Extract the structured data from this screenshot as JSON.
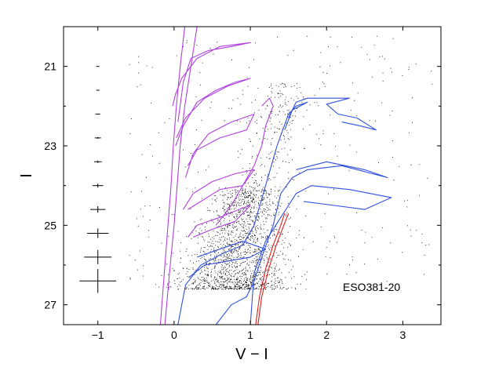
{
  "chart_data": {
    "type": "scatter",
    "xlabel": "V − I",
    "ylabel": "I",
    "xlim": [
      -1.45,
      3.5
    ],
    "ylim": [
      27.5,
      20.0
    ],
    "y_inverted": true,
    "grid": false,
    "x_ticks": [
      -1,
      0,
      1,
      2,
      3
    ],
    "x_tick_labels": [
      "−1",
      "0",
      "1",
      "2",
      "3"
    ],
    "y_ticks": [
      21,
      23,
      25,
      27
    ],
    "y_tick_labels": [
      "21",
      "23",
      "25",
      "27"
    ],
    "annotation": "ESO381-20",
    "scatter_color": "#000000",
    "error_bars": [
      {
        "x": -1,
        "y": 21.0,
        "xerr": 0.02,
        "yerr": 0.0
      },
      {
        "x": -1,
        "y": 21.6,
        "xerr": 0.02,
        "yerr": 0.0
      },
      {
        "x": -1,
        "y": 22.2,
        "xerr": 0.03,
        "yerr": 0.0
      },
      {
        "x": -1,
        "y": 22.8,
        "xerr": 0.04,
        "yerr": 0.02
      },
      {
        "x": -1,
        "y": 23.4,
        "xerr": 0.05,
        "yerr": 0.03
      },
      {
        "x": -1,
        "y": 24.0,
        "xerr": 0.07,
        "yerr": 0.05
      },
      {
        "x": -1,
        "y": 24.6,
        "xerr": 0.1,
        "yerr": 0.08
      },
      {
        "x": -1,
        "y": 25.2,
        "xerr": 0.14,
        "yerr": 0.12
      },
      {
        "x": -1,
        "y": 25.8,
        "xerr": 0.18,
        "yerr": 0.18
      },
      {
        "x": -1,
        "y": 26.4,
        "xerr": 0.24,
        "yerr": 0.3
      }
    ],
    "series": [
      {
        "color": "#b040e0",
        "values": [
          [
            -0.12,
            27.5
          ],
          [
            -0.05,
            26.0
          ],
          [
            0.0,
            25.0
          ],
          [
            0.04,
            24.0
          ],
          [
            0.08,
            23.0
          ],
          [
            0.14,
            22.0
          ],
          [
            0.22,
            21.0
          ],
          [
            0.3,
            20.0
          ]
        ]
      },
      {
        "color": "#b040e0",
        "values": [
          [
            -0.18,
            27.5
          ],
          [
            -0.12,
            26.0
          ],
          [
            -0.08,
            25.0
          ],
          [
            -0.04,
            24.0
          ],
          [
            -0.01,
            23.0
          ],
          [
            0.03,
            22.0
          ],
          [
            0.08,
            21.0
          ],
          [
            0.14,
            20.0
          ]
        ]
      },
      {
        "color": "#b040e0",
        "values": [
          [
            0.05,
            22.4
          ],
          [
            0.12,
            21.4
          ],
          [
            0.22,
            20.8
          ],
          [
            0.45,
            20.6
          ],
          [
            0.75,
            20.5
          ],
          [
            1.0,
            20.4
          ],
          [
            0.6,
            20.5
          ],
          [
            0.3,
            20.8
          ],
          [
            0.1,
            21.3
          ],
          [
            0.02,
            21.7
          ],
          [
            -0.02,
            22.0
          ]
        ]
      },
      {
        "color": "#b040e0",
        "values": [
          [
            0.02,
            23.0
          ],
          [
            0.12,
            22.5
          ],
          [
            0.3,
            21.9
          ],
          [
            0.55,
            21.6
          ],
          [
            0.8,
            21.4
          ],
          [
            1.0,
            21.3
          ],
          [
            0.7,
            21.5
          ],
          [
            0.4,
            21.8
          ],
          [
            0.15,
            22.3
          ],
          [
            0.03,
            22.8
          ]
        ]
      },
      {
        "color": "#b040e0",
        "values": [
          [
            0.15,
            23.8
          ],
          [
            0.25,
            23.2
          ],
          [
            0.45,
            22.7
          ],
          [
            0.75,
            22.4
          ],
          [
            1.05,
            22.2
          ],
          [
            0.95,
            22.6
          ],
          [
            0.6,
            22.8
          ],
          [
            0.3,
            23.1
          ],
          [
            0.18,
            23.5
          ]
        ]
      },
      {
        "color": "#b040e0",
        "values": [
          [
            0.12,
            24.6
          ],
          [
            0.25,
            24.2
          ],
          [
            0.5,
            23.9
          ],
          [
            0.8,
            23.7
          ],
          [
            1.05,
            23.6
          ],
          [
            0.9,
            24.0
          ],
          [
            0.6,
            24.1
          ],
          [
            0.35,
            24.4
          ],
          [
            0.18,
            24.6
          ]
        ]
      },
      {
        "color": "#b040e0",
        "values": [
          [
            0.18,
            25.3
          ],
          [
            0.3,
            25.0
          ],
          [
            0.6,
            24.8
          ],
          [
            0.85,
            24.6
          ],
          [
            1.0,
            24.5
          ],
          [
            0.8,
            24.9
          ],
          [
            0.5,
            25.1
          ],
          [
            0.25,
            25.3
          ]
        ]
      },
      {
        "color": "#b040e0",
        "values": [
          [
            0.55,
            25.0
          ],
          [
            0.75,
            24.5
          ],
          [
            0.9,
            24.0
          ],
          [
            1.05,
            23.5
          ],
          [
            1.15,
            23.0
          ],
          [
            1.2,
            22.5
          ],
          [
            1.3,
            22.0
          ],
          [
            1.25,
            21.8
          ],
          [
            1.15,
            22.0
          ]
        ]
      },
      {
        "color": "#3050e0",
        "values": [
          [
            0.2,
            26.3
          ],
          [
            0.4,
            26.0
          ],
          [
            0.7,
            25.9
          ],
          [
            1.0,
            25.8
          ],
          [
            1.2,
            25.6
          ],
          [
            0.9,
            25.4
          ],
          [
            0.6,
            25.6
          ],
          [
            0.3,
            25.8
          ]
        ]
      },
      {
        "color": "#3050e0",
        "values": [
          [
            0.05,
            27.5
          ],
          [
            0.15,
            26.5
          ],
          [
            0.35,
            26.0
          ],
          [
            0.65,
            25.7
          ],
          [
            0.9,
            25.5
          ],
          [
            1.05,
            25.0
          ],
          [
            1.2,
            24.0
          ],
          [
            1.35,
            23.0
          ],
          [
            1.5,
            22.2
          ],
          [
            1.6,
            22.0
          ],
          [
            1.75,
            21.9
          ],
          [
            1.55,
            22.1
          ],
          [
            1.45,
            22.6
          ]
        ]
      },
      {
        "color": "#3050e0",
        "values": [
          [
            0.55,
            27.5
          ],
          [
            0.75,
            27.0
          ],
          [
            0.95,
            26.8
          ],
          [
            1.05,
            26.4
          ],
          [
            1.15,
            25.8
          ],
          [
            1.3,
            25.0
          ],
          [
            1.4,
            24.2
          ],
          [
            1.55,
            23.8
          ],
          [
            1.75,
            23.6
          ],
          [
            2.2,
            23.5
          ],
          [
            2.8,
            23.8
          ],
          [
            2.5,
            23.6
          ],
          [
            2.0,
            23.4
          ],
          [
            1.6,
            23.6
          ]
        ]
      },
      {
        "color": "#3050e0",
        "values": [
          [
            1.0,
            27.5
          ],
          [
            1.05,
            26.2
          ],
          [
            1.2,
            25.4
          ],
          [
            1.4,
            24.8
          ],
          [
            1.5,
            24.5
          ],
          [
            1.6,
            24.2
          ],
          [
            1.8,
            24.0
          ],
          [
            2.3,
            24.1
          ],
          [
            2.85,
            24.3
          ],
          [
            2.5,
            24.6
          ],
          [
            2.1,
            24.5
          ],
          [
            1.7,
            24.4
          ]
        ]
      },
      {
        "color": "#3050e0",
        "values": [
          [
            1.5,
            22.3
          ],
          [
            1.6,
            21.9
          ],
          [
            1.75,
            21.8
          ],
          [
            1.95,
            21.8
          ],
          [
            2.3,
            21.8
          ],
          [
            2.0,
            21.95
          ],
          [
            2.15,
            22.2
          ],
          [
            2.4,
            22.3
          ],
          [
            2.65,
            22.6
          ],
          [
            2.45,
            22.5
          ],
          [
            2.2,
            22.4
          ]
        ]
      },
      {
        "color": "#e02020",
        "values": [
          [
            1.07,
            27.5
          ],
          [
            1.12,
            26.8
          ],
          [
            1.2,
            26.1
          ],
          [
            1.3,
            25.5
          ],
          [
            1.4,
            25.0
          ],
          [
            1.45,
            24.7
          ]
        ]
      },
      {
        "color": "#e02020",
        "values": [
          [
            1.1,
            27.5
          ],
          [
            1.15,
            26.8
          ],
          [
            1.24,
            26.1
          ],
          [
            1.34,
            25.5
          ],
          [
            1.44,
            25.0
          ],
          [
            1.5,
            24.7
          ]
        ]
      }
    ]
  }
}
